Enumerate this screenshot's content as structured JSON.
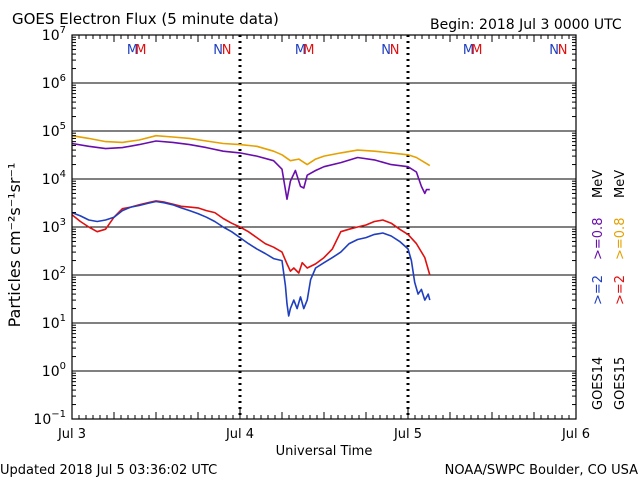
{
  "header": {
    "title": "GOES Electron Flux (5 minute data)",
    "begin": "Begin: 2018 Jul 3 0000 UTC"
  },
  "footer": {
    "updated": "Updated 2018 Jul  5 03:36:02 UTC",
    "credit": "NOAA/SWPC Boulder, CO USA"
  },
  "colors": {
    "goes14_2mev": "#1f3fbf",
    "goes15_2mev": "#e01010",
    "goes14_08mev": "#6a0dad",
    "goes15_08mev": "#e6a000",
    "m_blue": "#1f3fbf",
    "m_red": "#e01010"
  },
  "chart_data": {
    "type": "line",
    "title": "GOES Electron Flux (5 minute data)",
    "xlabel": "Universal Time",
    "ylabel": "Particles cm⁻²s⁻¹sr⁻¹",
    "yscale": "log",
    "ylim": [
      0.1,
      10000000
    ],
    "xlim": [
      0,
      3
    ],
    "x_ticks": [
      {
        "x": 0,
        "label": "Jul 3"
      },
      {
        "x": 1,
        "label": "Jul 4"
      },
      {
        "x": 2,
        "label": "Jul 5"
      },
      {
        "x": 3,
        "label": "Jul 6"
      }
    ],
    "y_ticks": [
      {
        "exp": -1,
        "base": "10",
        "sup": "−1"
      },
      {
        "exp": 0,
        "base": "10",
        "sup": "0"
      },
      {
        "exp": 1,
        "base": "10",
        "sup": "1"
      },
      {
        "exp": 2,
        "base": "10",
        "sup": "2"
      },
      {
        "exp": 3,
        "base": "10",
        "sup": "3"
      },
      {
        "exp": 4,
        "base": "10",
        "sup": "4"
      },
      {
        "exp": 5,
        "base": "10",
        "sup": "5"
      },
      {
        "exp": 6,
        "base": "10",
        "sup": "6"
      },
      {
        "exp": 7,
        "base": "10",
        "sup": "7"
      }
    ],
    "threshold": 1000,
    "day_separators": [
      1,
      2
    ],
    "local_midnight_markers": [
      {
        "day": 0,
        "label": "M",
        "x": [
          0.36,
          0.41
        ],
        "colors": [
          "blue",
          "red"
        ]
      },
      {
        "day": 0,
        "label": "N",
        "x": [
          0.87,
          0.92
        ],
        "colors": [
          "blue",
          "red"
        ]
      },
      {
        "day": 1,
        "label": "M",
        "x": [
          1.36,
          1.41
        ],
        "colors": [
          "blue",
          "red"
        ]
      },
      {
        "day": 1,
        "label": "N",
        "x": [
          1.87,
          1.92
        ],
        "colors": [
          "blue",
          "red"
        ]
      },
      {
        "day": 2,
        "label": "M",
        "x": [
          2.36,
          2.41
        ],
        "colors": [
          "blue",
          "red"
        ]
      },
      {
        "day": 2,
        "label": "N",
        "x": [
          2.87,
          2.92
        ],
        "colors": [
          "blue",
          "red"
        ]
      }
    ],
    "legend": {
      "placement": "right",
      "columns": [
        {
          "satellite": "GOES14",
          "entries": [
            {
              "text": ">=2",
              "color": "goes14_2mev"
            },
            {
              "text": ">=0.8",
              "color": "goes14_08mev"
            }
          ],
          "unit": "MeV"
        },
        {
          "satellite": "GOES15",
          "entries": [
            {
              "text": ">=2",
              "color": "goes15_2mev"
            },
            {
              "text": ">=0.8",
              "color": "goes15_08mev"
            }
          ],
          "unit": "MeV"
        }
      ]
    },
    "series": [
      {
        "name": "GOES15 >=0.8 MeV",
        "color": "goes15_08mev",
        "x": [
          0.0,
          0.1,
          0.2,
          0.3,
          0.4,
          0.5,
          0.6,
          0.7,
          0.8,
          0.9,
          1.0,
          1.1,
          1.2,
          1.25,
          1.3,
          1.35,
          1.4,
          1.45,
          1.5,
          1.6,
          1.7,
          1.8,
          1.9,
          2.0,
          2.05,
          2.1,
          2.13
        ],
        "y": [
          80000,
          70000,
          60000,
          58000,
          65000,
          80000,
          75000,
          70000,
          62000,
          55000,
          52000,
          48000,
          38000,
          32000,
          24000,
          26000,
          20000,
          26000,
          30000,
          35000,
          40000,
          38000,
          35000,
          32000,
          28000,
          22000,
          19000
        ]
      },
      {
        "name": "GOES14 >=0.8 MeV",
        "color": "goes14_08mev",
        "x": [
          0.0,
          0.1,
          0.2,
          0.3,
          0.4,
          0.5,
          0.6,
          0.7,
          0.8,
          0.9,
          1.0,
          1.1,
          1.2,
          1.25,
          1.28,
          1.3,
          1.33,
          1.36,
          1.38,
          1.4,
          1.45,
          1.5,
          1.6,
          1.7,
          1.8,
          1.9,
          2.0,
          2.05,
          2.08,
          2.1,
          2.11,
          2.13
        ],
        "y": [
          55000,
          48000,
          43000,
          45000,
          52000,
          62000,
          58000,
          52000,
          45000,
          38000,
          35000,
          30000,
          24000,
          16000,
          3800,
          9000,
          15000,
          7000,
          6500,
          12000,
          15000,
          18000,
          22000,
          28000,
          25000,
          20000,
          18000,
          14000,
          7000,
          5000,
          6000,
          6000
        ]
      },
      {
        "name": "GOES15 >=2 MeV",
        "color": "goes15_2mev",
        "x": [
          0.0,
          0.05,
          0.1,
          0.15,
          0.2,
          0.25,
          0.3,
          0.35,
          0.4,
          0.45,
          0.5,
          0.55,
          0.6,
          0.65,
          0.7,
          0.75,
          0.8,
          0.85,
          0.9,
          0.95,
          1.0,
          1.05,
          1.1,
          1.15,
          1.2,
          1.25,
          1.28,
          1.3,
          1.32,
          1.35,
          1.37,
          1.4,
          1.45,
          1.5,
          1.55,
          1.6,
          1.65,
          1.7,
          1.75,
          1.8,
          1.85,
          1.9,
          1.95,
          2.0,
          2.05,
          2.1,
          2.13
        ],
        "y": [
          1800,
          1300,
          1000,
          800,
          900,
          1600,
          2400,
          2600,
          2900,
          3200,
          3500,
          3300,
          3000,
          2700,
          2600,
          2500,
          2200,
          2000,
          1500,
          1200,
          1000,
          800,
          600,
          450,
          380,
          300,
          170,
          120,
          140,
          110,
          180,
          140,
          170,
          230,
          350,
          800,
          900,
          1000,
          1100,
          1300,
          1400,
          1200,
          900,
          700,
          450,
          230,
          100
        ]
      },
      {
        "name": "GOES14 >=2 MeV",
        "color": "goes14_2mev",
        "x": [
          0.0,
          0.05,
          0.1,
          0.15,
          0.2,
          0.25,
          0.3,
          0.35,
          0.4,
          0.45,
          0.5,
          0.55,
          0.6,
          0.65,
          0.7,
          0.75,
          0.8,
          0.85,
          0.9,
          0.95,
          1.0,
          1.05,
          1.1,
          1.15,
          1.2,
          1.25,
          1.27,
          1.28,
          1.29,
          1.3,
          1.32,
          1.34,
          1.36,
          1.38,
          1.4,
          1.42,
          1.45,
          1.5,
          1.55,
          1.6,
          1.65,
          1.7,
          1.75,
          1.8,
          1.85,
          1.9,
          1.95,
          2.0,
          2.02,
          2.04,
          2.06,
          2.08,
          2.1,
          2.12,
          2.13
        ],
        "y": [
          2000,
          1700,
          1400,
          1300,
          1400,
          1600,
          2200,
          2600,
          2800,
          3100,
          3400,
          3200,
          2900,
          2500,
          2200,
          1900,
          1600,
          1300,
          1000,
          800,
          600,
          450,
          350,
          280,
          220,
          200,
          60,
          25,
          14,
          20,
          30,
          20,
          35,
          20,
          30,
          80,
          140,
          180,
          230,
          300,
          450,
          550,
          600,
          700,
          750,
          650,
          500,
          350,
          200,
          70,
          40,
          50,
          30,
          40,
          30
        ]
      }
    ]
  }
}
